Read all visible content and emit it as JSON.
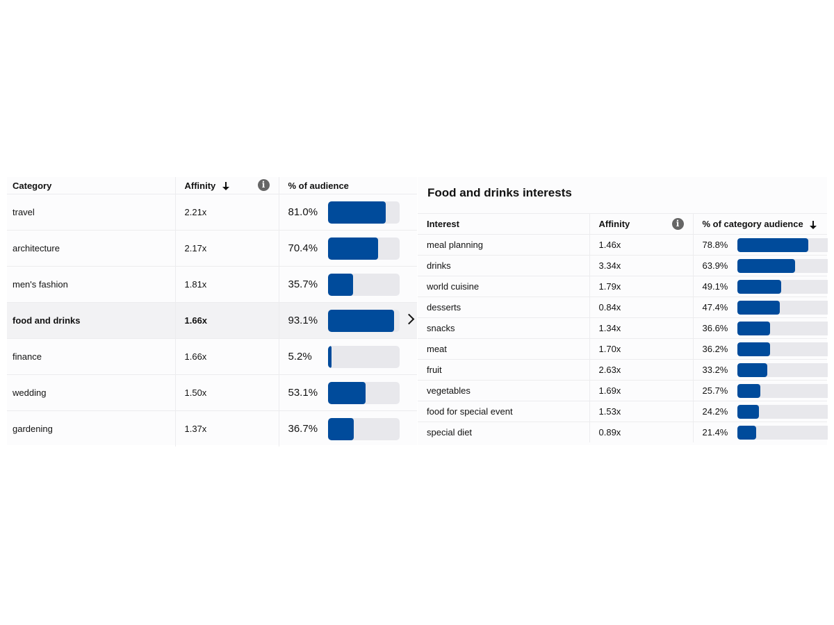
{
  "left_table": {
    "headers": {
      "category": "Category",
      "affinity": "Affinity",
      "audience": "% of audience"
    },
    "sorted_by": "Affinity",
    "sort_direction": "descending",
    "selected_row": "food and drinks",
    "rows": [
      {
        "category": "travel",
        "affinity": "2.21x",
        "audience": "81.0%",
        "audience_value": 81.0
      },
      {
        "category": "architecture",
        "affinity": "2.17x",
        "audience": "70.4%",
        "audience_value": 70.4
      },
      {
        "category": "men's fashion",
        "affinity": "1.81x",
        "audience": "35.7%",
        "audience_value": 35.7
      },
      {
        "category": "food and drinks",
        "affinity": "1.66x",
        "audience": "93.1%",
        "audience_value": 93.1
      },
      {
        "category": "finance",
        "affinity": "1.66x",
        "audience": "5.2%",
        "audience_value": 5.2
      },
      {
        "category": "wedding",
        "affinity": "1.50x",
        "audience": "53.1%",
        "audience_value": 53.1
      },
      {
        "category": "gardening",
        "affinity": "1.37x",
        "audience": "36.7%",
        "audience_value": 36.7
      }
    ]
  },
  "right_panel": {
    "title": "Food and drinks interests",
    "headers": {
      "interest": "Interest",
      "affinity": "Affinity",
      "audience": "% of category audience"
    },
    "sorted_by": "% of category audience",
    "sort_direction": "descending",
    "rows": [
      {
        "interest": "meal planning",
        "affinity": "1.46x",
        "audience": "78.8%",
        "audience_value": 78.8
      },
      {
        "interest": "drinks",
        "affinity": "3.34x",
        "audience": "63.9%",
        "audience_value": 63.9
      },
      {
        "interest": "world cuisine",
        "affinity": "1.79x",
        "audience": "49.1%",
        "audience_value": 49.1
      },
      {
        "interest": "desserts",
        "affinity": "0.84x",
        "audience": "47.4%",
        "audience_value": 47.4
      },
      {
        "interest": "snacks",
        "affinity": "1.34x",
        "audience": "36.6%",
        "audience_value": 36.6
      },
      {
        "interest": "meat",
        "affinity": "1.70x",
        "audience": "36.2%",
        "audience_value": 36.2
      },
      {
        "interest": "fruit",
        "affinity": "2.63x",
        "audience": "33.2%",
        "audience_value": 33.2
      },
      {
        "interest": "vegetables",
        "affinity": "1.69x",
        "audience": "25.7%",
        "audience_value": 25.7
      },
      {
        "interest": "food for special event",
        "affinity": "1.53x",
        "audience": "24.2%",
        "audience_value": 24.2
      },
      {
        "interest": "special diet",
        "affinity": "0.89x",
        "audience": "21.4%",
        "audience_value": 21.4
      }
    ]
  },
  "icons": {
    "info": "info-icon",
    "sort": "arrow-down-icon",
    "expand": "chevron-right-icon"
  },
  "colors": {
    "bar_fill": "#004b9b",
    "bar_track": "#e8e8ec",
    "selected_row": "#f2f2f4"
  }
}
